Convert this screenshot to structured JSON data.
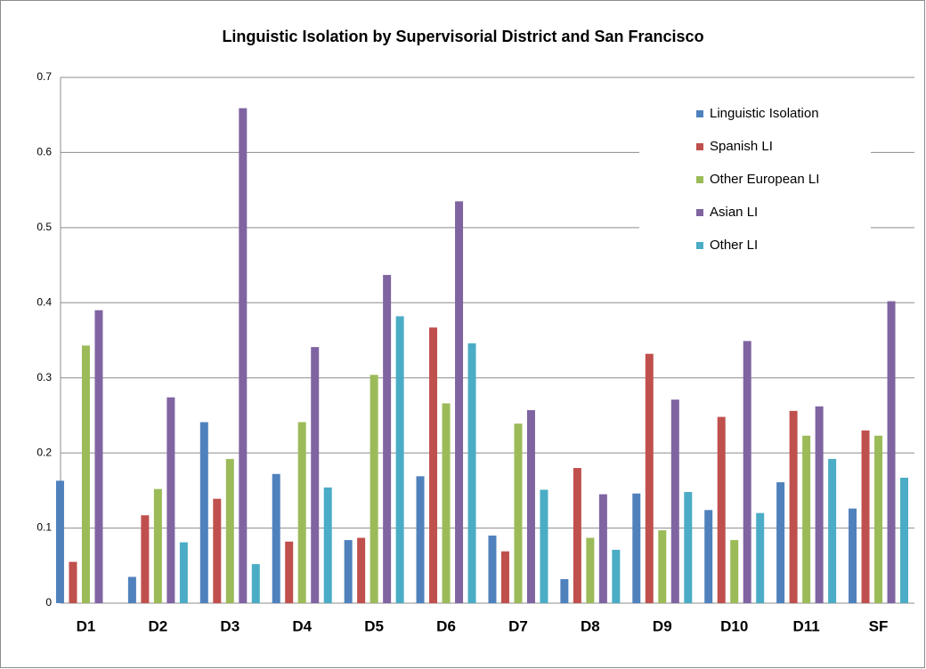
{
  "chart_data": {
    "type": "bar",
    "title": "Linguistic Isolation by Supervisorial District and San Francisco",
    "categories": [
      "D1",
      "D2",
      "D3",
      "D4",
      "D5",
      "D6",
      "D7",
      "D8",
      "D9",
      "D10",
      "D11",
      "SF"
    ],
    "series": [
      {
        "name": "Linguistic Isolation",
        "color": "#4f81bd",
        "values": [
          0.163,
          0.035,
          0.241,
          0.172,
          0.084,
          0.169,
          0.09,
          0.032,
          0.146,
          0.124,
          0.161,
          0.126
        ]
      },
      {
        "name": "Spanish LI",
        "color": "#c0504d",
        "values": [
          0.055,
          0.117,
          0.139,
          0.082,
          0.087,
          0.367,
          0.069,
          0.18,
          0.332,
          0.248,
          0.256,
          0.23
        ]
      },
      {
        "name": "Other European LI",
        "color": "#9bbb59",
        "values": [
          0.343,
          0.152,
          0.192,
          0.241,
          0.304,
          0.266,
          0.239,
          0.087,
          0.097,
          0.084,
          0.223,
          0.223
        ]
      },
      {
        "name": "Asian LI",
        "color": "#8064a2",
        "values": [
          0.39,
          0.274,
          0.659,
          0.341,
          0.437,
          0.535,
          0.257,
          0.145,
          0.271,
          0.349,
          0.262,
          0.402
        ]
      },
      {
        "name": "Other LI",
        "color": "#4bacc6",
        "values": [
          null,
          0.081,
          0.052,
          0.154,
          0.382,
          0.346,
          0.151,
          0.071,
          0.148,
          0.12,
          0.192,
          0.167
        ]
      }
    ],
    "ylim": [
      0,
      0.7
    ],
    "yticks": [
      0,
      0.1,
      0.2,
      0.3,
      0.4,
      0.5,
      0.6,
      0.7
    ],
    "grid": true,
    "legend": "top-right"
  }
}
